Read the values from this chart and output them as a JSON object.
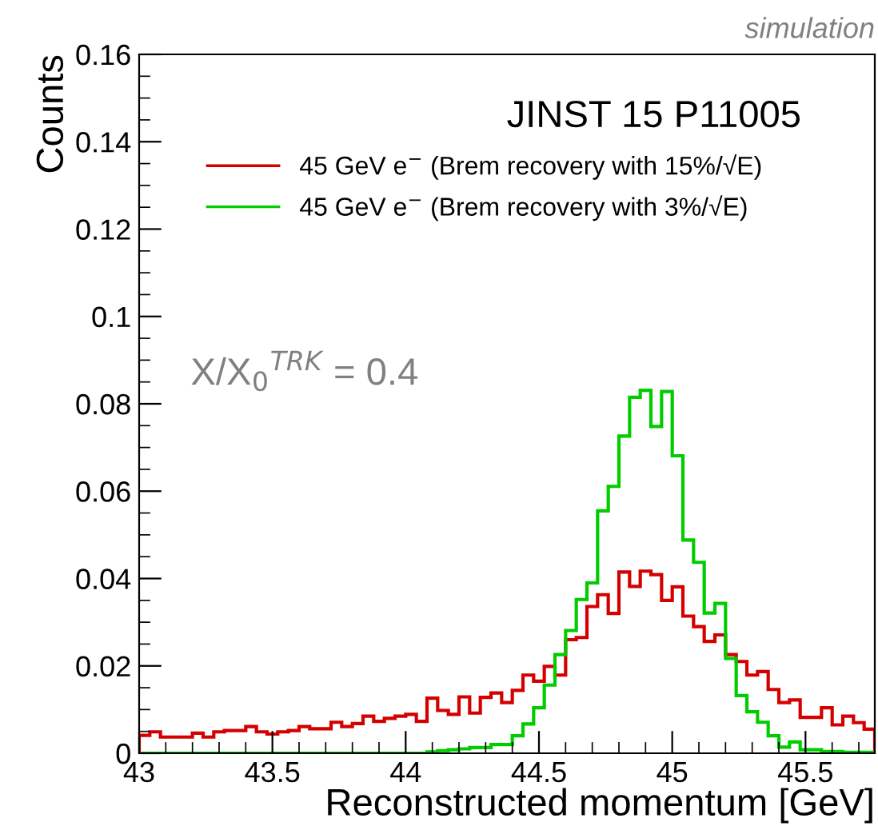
{
  "chart_data": {
    "type": "histogram",
    "xlabel": "Reconstructed momentum [GeV]",
    "ylabel": "Counts",
    "annotations": [
      "simulation",
      "JINST 15 P11005",
      "X/X$_{0}$$^{TRK}$ = 0.4"
    ],
    "bins": [
      43.0,
      43.04,
      43.08,
      43.12,
      43.16,
      43.2,
      43.24,
      43.28,
      43.32,
      43.36,
      43.4,
      43.44,
      43.48,
      43.52,
      43.56,
      43.6,
      43.64,
      43.68,
      43.72,
      43.76,
      43.8,
      43.84,
      43.88,
      43.92,
      43.96,
      44.0,
      44.04,
      44.08,
      44.12,
      44.16,
      44.2,
      44.24,
      44.28,
      44.32,
      44.36,
      44.4,
      44.44,
      44.48,
      44.52,
      44.56,
      44.6,
      44.64,
      44.68,
      44.72,
      44.76,
      44.8,
      44.84,
      44.88,
      44.92,
      44.96,
      45.0,
      45.04,
      45.08,
      45.12,
      45.16,
      45.2,
      45.24,
      45.28,
      45.32,
      45.36,
      45.4,
      45.44,
      45.48,
      45.52,
      45.56,
      45.6,
      45.64,
      45.68,
      45.72,
      45.76
    ],
    "series": [
      {
        "name": "45 GeV e$^{−}$ (Brem recovery with 15%/√E)",
        "color": "#d40000",
        "values": [
          0.0041,
          0.0049,
          0.0037,
          0.0037,
          0.0037,
          0.0046,
          0.0037,
          0.0049,
          0.0052,
          0.0052,
          0.0061,
          0.0049,
          0.0044,
          0.0049,
          0.0052,
          0.0061,
          0.0056,
          0.0056,
          0.0071,
          0.0061,
          0.0068,
          0.0085,
          0.0073,
          0.008,
          0.0085,
          0.0089,
          0.0073,
          0.0126,
          0.0098,
          0.0089,
          0.0129,
          0.0092,
          0.0128,
          0.0138,
          0.0116,
          0.0144,
          0.0179,
          0.0165,
          0.0199,
          0.0179,
          0.026,
          0.0265,
          0.0336,
          0.0363,
          0.032,
          0.0415,
          0.0382,
          0.0417,
          0.0409,
          0.035,
          0.0381,
          0.0314,
          0.029,
          0.0256,
          0.0271,
          0.0226,
          0.021,
          0.0179,
          0.0187,
          0.0146,
          0.0116,
          0.0122,
          0.0082,
          0.0082,
          0.0104,
          0.0065,
          0.0085,
          0.007,
          0.0055
        ]
      },
      {
        "name": "45 GeV e$^{−}$ (Brem recovery with 3%/√E)",
        "color": "#00cc00",
        "values": [
          0,
          0,
          0,
          0,
          0,
          0,
          0,
          0,
          0,
          0,
          0,
          0,
          0,
          0,
          0,
          0,
          0,
          0,
          0,
          0,
          0,
          0,
          0,
          0,
          0,
          0,
          0,
          0.0003,
          0.0006,
          0.0008,
          0.001,
          0.0013,
          0.0013,
          0.002,
          0.002,
          0.004,
          0.0067,
          0.0104,
          0.0156,
          0.0226,
          0.0281,
          0.0352,
          0.039,
          0.0555,
          0.0611,
          0.0726,
          0.0815,
          0.0831,
          0.0748,
          0.0828,
          0.0681,
          0.0488,
          0.0437,
          0.0321,
          0.0343,
          0.0217,
          0.0132,
          0.0095,
          0.0071,
          0.004,
          0.0014,
          0.0026,
          0.0008,
          0.0008,
          0.0004,
          0.0004,
          0.0002,
          0.0002,
          0.0002
        ]
      }
    ],
    "xlim": [
      43,
      45.76
    ],
    "ylim": [
      0,
      0.16
    ],
    "xticks": [
      43,
      43.5,
      44,
      44.5,
      45,
      45.5
    ],
    "yticks": [
      0,
      0.02,
      0.04,
      0.06,
      0.08,
      0.1,
      0.12,
      0.14,
      0.16
    ],
    "grid": false,
    "legend": "top"
  }
}
